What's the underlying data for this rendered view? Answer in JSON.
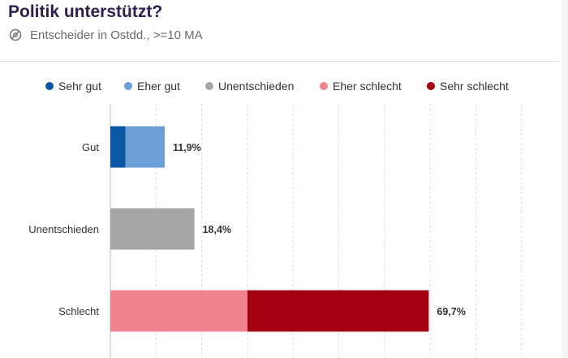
{
  "header": {
    "title": "Politik unterstützt?",
    "subtitle": "Entscheider in Ostdd., >=10 MA",
    "subtitle_icon": "blocked-icon"
  },
  "legend": {
    "items": [
      {
        "label": "Sehr gut",
        "color": "#0b57a4"
      },
      {
        "label": "Eher gut",
        "color": "#6b9fd6"
      },
      {
        "label": "Unentschieden",
        "color": "#a6a6a6"
      },
      {
        "label": "Eher schlecht",
        "color": "#f0838c"
      },
      {
        "label": "Sehr schlecht",
        "color": "#a30012"
      }
    ]
  },
  "chart_data": {
    "type": "bar",
    "orientation": "horizontal",
    "stacked": true,
    "categories": [
      "Gut",
      "Unentschieden",
      "Schlecht"
    ],
    "series": [
      {
        "name": "Sehr gut",
        "color": "#0b57a4",
        "values": [
          3.3,
          0,
          0
        ]
      },
      {
        "name": "Eher gut",
        "color": "#6b9fd6",
        "values": [
          8.6,
          0,
          0
        ]
      },
      {
        "name": "Unentschieden",
        "color": "#a6a6a6",
        "values": [
          0,
          18.4,
          0
        ]
      },
      {
        "name": "Eher schlecht",
        "color": "#f0838c",
        "values": [
          0,
          0,
          30.0
        ]
      },
      {
        "name": "Sehr schlecht",
        "color": "#a30012",
        "values": [
          0,
          0,
          39.7
        ]
      }
    ],
    "totals": [
      11.9,
      18.4,
      69.7
    ],
    "total_labels": [
      "11,9%",
      "18,4%",
      "69,7%"
    ],
    "xlim": [
      0,
      100
    ],
    "grid": true,
    "grid_style": "dashed-vertical",
    "legend_position": "top"
  }
}
